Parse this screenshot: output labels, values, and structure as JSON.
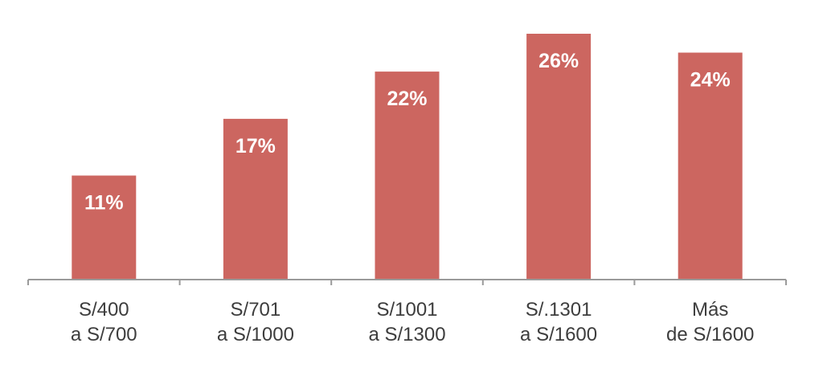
{
  "colors": {
    "bar": "#cc6660",
    "bar_label": "#ffffff",
    "axis": "#9a9a9a",
    "category_text": "#3d3d3d",
    "background": "#ffffff"
  },
  "chart_data": {
    "type": "bar",
    "categories": [
      [
        "S/400",
        "a S/700"
      ],
      [
        "S/701",
        "a S/1000"
      ],
      [
        "S/1001",
        "a S/1300"
      ],
      [
        "S/.1301",
        "a S/1600"
      ],
      [
        "Más",
        "de S/1600"
      ]
    ],
    "values": [
      11,
      17,
      22,
      26,
      24
    ],
    "data_labels": [
      "11%",
      "17%",
      "22%",
      "26%",
      "24%"
    ],
    "unit": "%",
    "title": "",
    "xlabel": "",
    "ylabel": "",
    "ylim": [
      0,
      26
    ],
    "grid": false,
    "legend": "none"
  }
}
